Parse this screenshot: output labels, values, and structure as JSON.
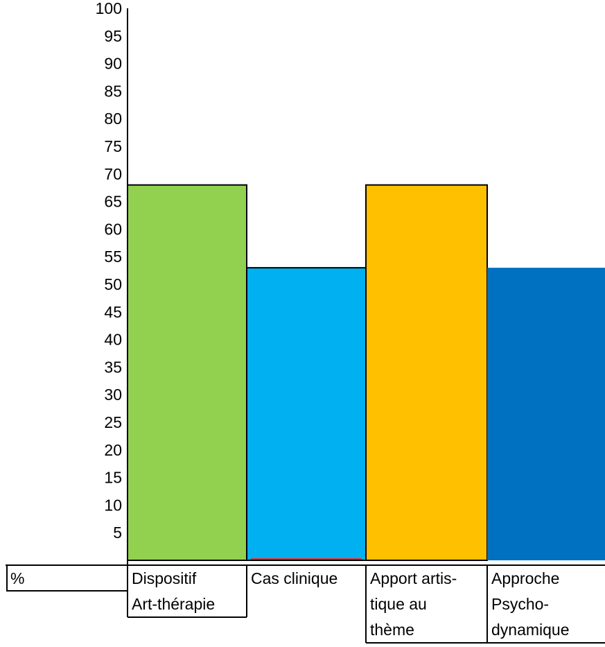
{
  "chart_data": {
    "type": "bar",
    "categories": [
      [
        "Dispositif",
        "Art-thérapie"
      ],
      [
        "Cas clinique"
      ],
      [
        "Apport artis-",
        "tique au",
        "thème"
      ],
      [
        "Approche",
        "Psycho-",
        "dynamique"
      ]
    ],
    "values": [
      68,
      53,
      68,
      53
    ],
    "colors": [
      "#92d050",
      "#00b0f0",
      "#ffc000",
      "#0070c0"
    ],
    "yticks": [
      5,
      10,
      15,
      20,
      25,
      30,
      35,
      40,
      45,
      50,
      55,
      60,
      65,
      70,
      75,
      80,
      85,
      90,
      95,
      100
    ],
    "ylim": [
      0,
      100
    ],
    "unit_label": "%",
    "grid": false,
    "legend": "none"
  }
}
